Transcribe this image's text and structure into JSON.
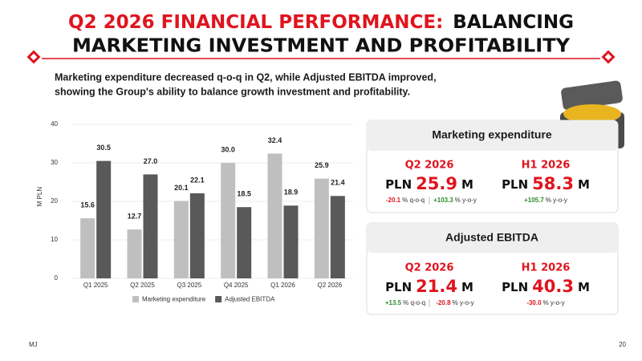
{
  "title": [
    "Q2 2026 FINANCIAL PERFORMANCE:",
    "BALANCING",
    "MARKETING INVESTMENT AND PROFITABILITY"
  ],
  "subtitle": [
    "Marketing expenditure decreased q-o-q in Q2, while Adjusted EBITDA improved,",
    "showing the Group's ability to balance growth investment and profitability."
  ],
  "chart_data": {
    "type": "bar",
    "y_label": "M PLN",
    "categories": [
      "Q1 2025",
      "Q2 2025",
      "Q3 2025",
      "Q4 2025",
      "Q1 2026",
      "Q2 2026"
    ],
    "series": [
      {
        "name": "Marketing expenditure",
        "color": "#bfbfbf",
        "values": [
          15.6,
          12.7,
          20.1,
          30.0,
          32.4,
          25.9
        ],
        "value_labels": [
          "15.6",
          "12.7",
          "20.1",
          "30.0",
          "32.4",
          "25.9"
        ]
      },
      {
        "name": "Adjusted EBITDA",
        "color": "#595959",
        "values": [
          30.5,
          27.0,
          22.1,
          18.5,
          18.9,
          21.4
        ],
        "value_labels": [
          "30.5",
          "27.0",
          "22.1",
          "18.5",
          "18.9",
          "21.4"
        ]
      }
    ],
    "ylim": [
      0,
      40
    ],
    "yticks": [
      0,
      10,
      20,
      30,
      40
    ],
    "grid": true,
    "legend": "bottom"
  },
  "cards": [
    {
      "title": "Marketing expenditure",
      "kpis": [
        {
          "period": "Q2 2026",
          "currency": "PLN",
          "value": "25.9",
          "unit": "M",
          "changes": [
            {
              "value": "-20.1",
              "label": "% q-o-q"
            },
            {
              "value": "+103.3",
              "label": "% y-o-y"
            }
          ]
        },
        {
          "period": "H1 2026",
          "currency": "PLN",
          "value": "58.3",
          "unit": "M",
          "changes": [
            {
              "value": "+105.7",
              "label": "% y-o-y"
            }
          ]
        }
      ]
    },
    {
      "title": "Adjusted EBITDA",
      "kpis": [
        {
          "period": "Q2 2026",
          "currency": "PLN",
          "value": "21.4",
          "unit": "M",
          "changes": [
            {
              "value": "+13.5",
              "label": "% q-o-q"
            },
            {
              "value": "-20.8",
              "label": "% y-o-y"
            }
          ]
        },
        {
          "period": "H1 2026",
          "currency": "PLN",
          "value": "40.3",
          "unit": "M",
          "changes": [
            {
              "value": "-30.0",
              "label": "% y-o-y"
            }
          ]
        }
      ]
    }
  ],
  "footer": {
    "mark": "MJ",
    "page": "20"
  }
}
